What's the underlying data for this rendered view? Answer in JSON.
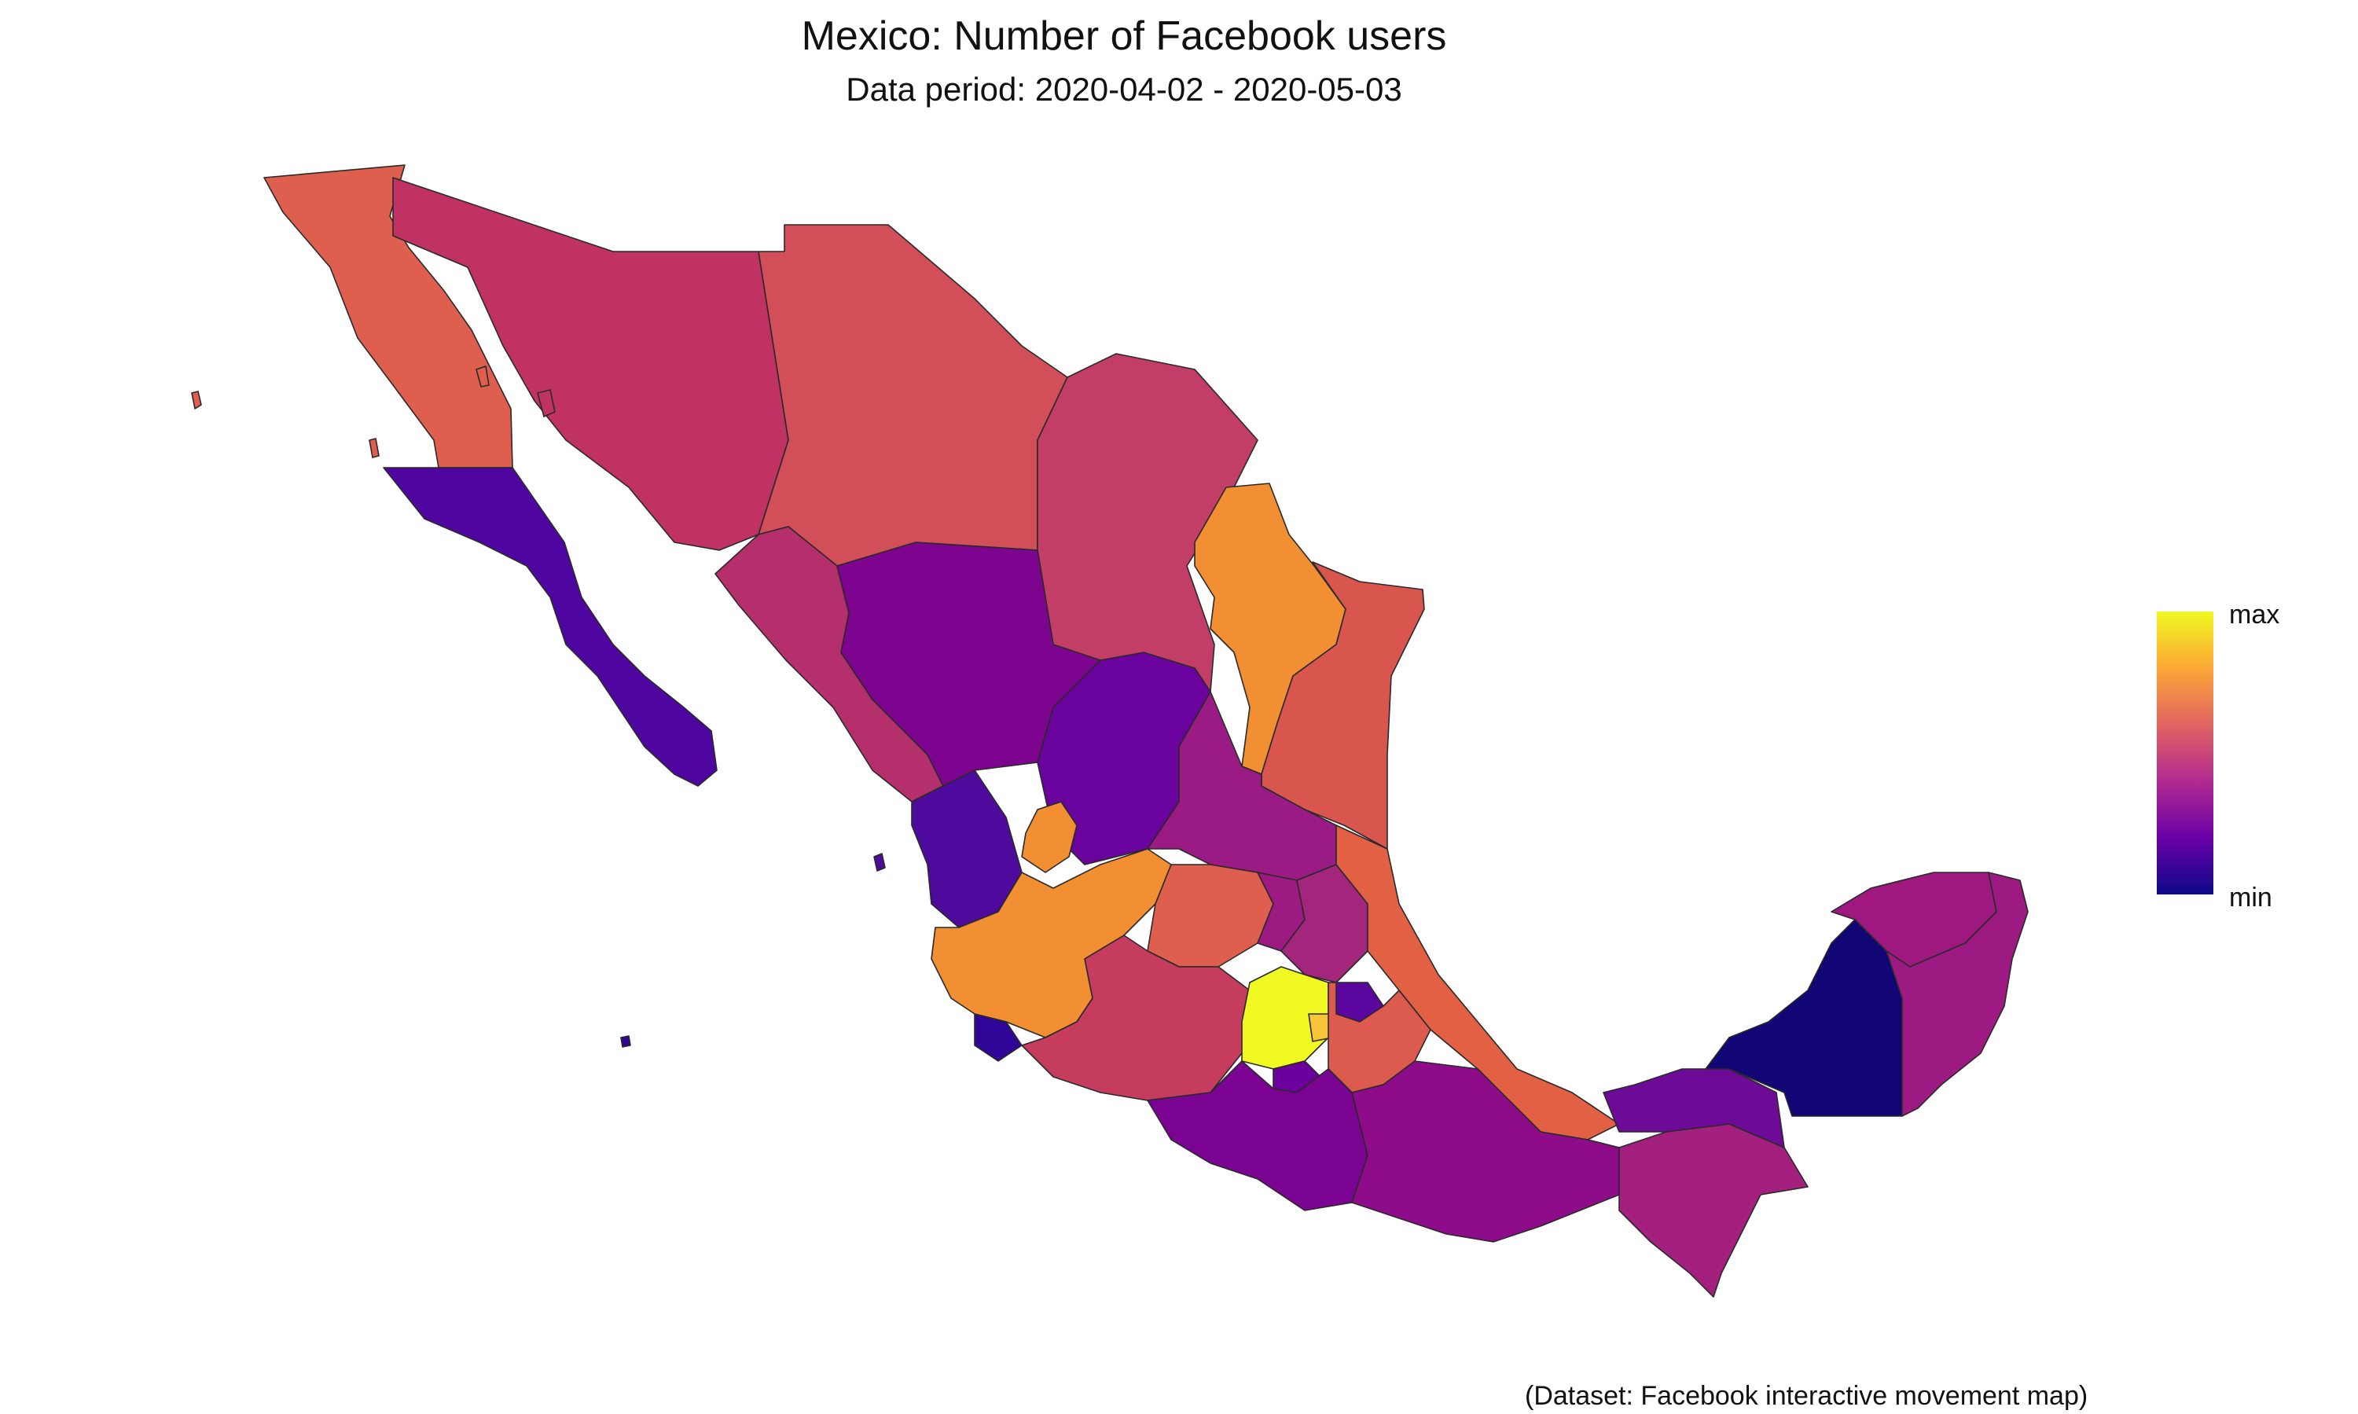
{
  "header": {
    "title": "Mexico: Number of Facebook users",
    "subtitle": "Data period: 2020-04-02 - 2020-05-03"
  },
  "legend": {
    "max_label": "max",
    "min_label": "min",
    "gradient_colors": [
      "#0d0887",
      "#6a00a8",
      "#b12a90",
      "#e16462",
      "#fca636",
      "#f0f921"
    ]
  },
  "caption": "(Dataset: Facebook interactive movement map)",
  "regions": [
    {
      "name": "Baja California",
      "fill": "#df5f4f",
      "level": 0.68
    },
    {
      "name": "Baja California Sur",
      "fill": "#4f06a0",
      "level": 0.14
    },
    {
      "name": "Sonora",
      "fill": "#bf3263",
      "level": 0.5
    },
    {
      "name": "Chihuahua",
      "fill": "#d24e58",
      "level": 0.6
    },
    {
      "name": "Coahuila",
      "fill": "#c33e66",
      "level": 0.54
    },
    {
      "name": "Nuevo Leon",
      "fill": "#f28f33",
      "level": 0.84
    },
    {
      "name": "Tamaulipas",
      "fill": "#d9564f",
      "level": 0.64
    },
    {
      "name": "Sinaloa",
      "fill": "#b52f6d",
      "level": 0.46
    },
    {
      "name": "Durango",
      "fill": "#7c048f",
      "level": 0.28
    },
    {
      "name": "Zacatecas",
      "fill": "#6a039d",
      "level": 0.22
    },
    {
      "name": "San Luis Potosi",
      "fill": "#9a1b83",
      "level": 0.38
    },
    {
      "name": "Nayarit",
      "fill": "#4d0a9c",
      "level": 0.14
    },
    {
      "name": "Aguascalientes",
      "fill": "#f28f33",
      "level": 0.84
    },
    {
      "name": "Jalisco",
      "fill": "#f28f33",
      "level": 0.84
    },
    {
      "name": "Guanajuato",
      "fill": "#df5f4f",
      "level": 0.68
    },
    {
      "name": "Queretaro",
      "fill": "#9c1a82",
      "level": 0.38
    },
    {
      "name": "Hidalgo",
      "fill": "#a3257c",
      "level": 0.42
    },
    {
      "name": "Veracruz",
      "fill": "#e26043",
      "level": 0.7
    },
    {
      "name": "Colima",
      "fill": "#2e0596",
      "level": 0.06
    },
    {
      "name": "Michoacan",
      "fill": "#c63c5f",
      "level": 0.56
    },
    {
      "name": "Estado de Mexico",
      "fill": "#f0f922",
      "level": 1.0
    },
    {
      "name": "Ciudad de Mexico",
      "fill": "#f8c53a",
      "level": 0.92
    },
    {
      "name": "Tlaxcala",
      "fill": "#5a069f",
      "level": 0.18
    },
    {
      "name": "Puebla",
      "fill": "#dc5b4e",
      "level": 0.66
    },
    {
      "name": "Morelos",
      "fill": "#6c009f",
      "level": 0.22
    },
    {
      "name": "Guerrero",
      "fill": "#7a0491",
      "level": 0.28
    },
    {
      "name": "Oaxaca",
      "fill": "#8e0b8a",
      "level": 0.34
    },
    {
      "name": "Chiapas",
      "fill": "#a3207e",
      "level": 0.42
    },
    {
      "name": "Tabasco",
      "fill": "#6d0a98",
      "level": 0.22
    },
    {
      "name": "Campeche",
      "fill": "#120677",
      "level": 0.0
    },
    {
      "name": "Yucatan",
      "fill": "#9e1880",
      "level": 0.4
    },
    {
      "name": "Quintana Roo",
      "fill": "#9c1a82",
      "level": 0.38
    }
  ]
}
